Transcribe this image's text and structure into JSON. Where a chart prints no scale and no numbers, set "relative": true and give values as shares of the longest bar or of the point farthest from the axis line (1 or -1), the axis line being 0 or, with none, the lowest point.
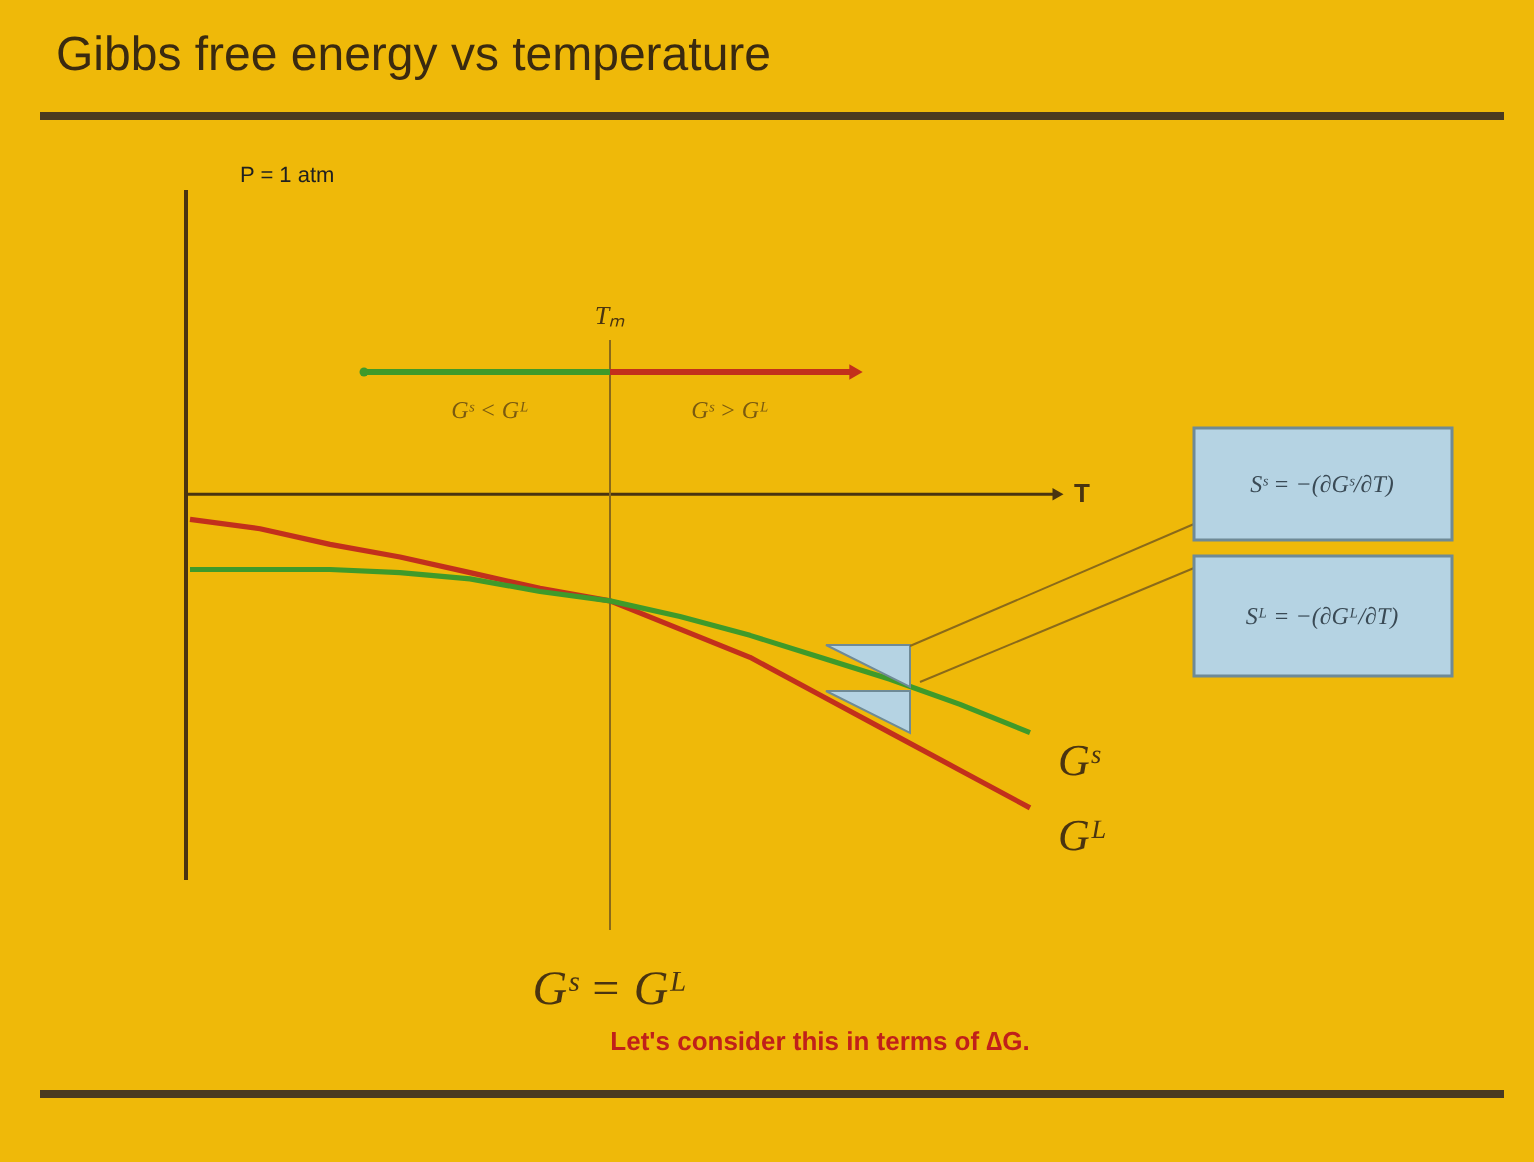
{
  "chart_data": {
    "type": "line",
    "title": "Gibbs free energy vs temperature",
    "xlabel": "T",
    "categories": [
      null,
      null,
      null,
      null,
      null,
      null,
      null,
      null,
      null,
      null,
      null,
      null,
      null
    ],
    "relative": true,
    "legend": false,
    "grid": false,
    "marker": "none",
    "line_style": "solid",
    "series": [
      {
        "name": "Gᴸ",
        "color": "#c2301c",
        "values": [
          -0.08,
          -0.11,
          -0.16,
          -0.2,
          -0.25,
          -0.3,
          -0.34,
          -0.43,
          -0.52,
          -0.64,
          -0.76,
          -0.88,
          -1
        ]
      },
      {
        "name": "Gˢ",
        "color": "#3f9a2a",
        "values": [
          -0.24,
          -0.24,
          -0.24,
          -0.25,
          -0.27,
          -0.31,
          -0.34,
          -0.39,
          -0.45,
          -0.52,
          -0.59,
          -0.67,
          -0.76
        ]
      }
    ],
    "annotations": [
      "Tₘ",
      "P = 1 atm",
      "Gˢ < Gᴸ",
      "Gˢ > Gᴸ",
      "Gˢ = Gᴸ",
      "Sˢ = −(∂Gˢ/∂T)",
      "Sᴸ = −(∂Gᴸ/∂T)",
      "Let's consider this in terms of ∆G."
    ]
  }
}
